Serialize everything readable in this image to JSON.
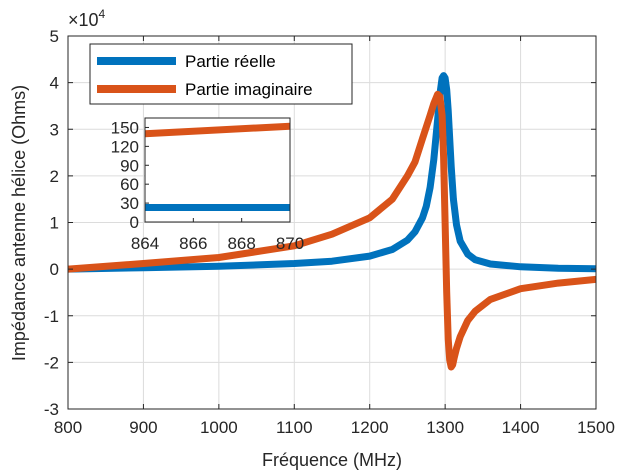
{
  "chart_data": [
    {
      "type": "line",
      "xlabel": "Fréquence (MHz)",
      "ylabel": "Impédance antenne hélice (Ohms)",
      "y_exponent_label": "×10",
      "y_exponent_power": "4",
      "xlim": [
        800,
        1500
      ],
      "ylim": [
        -3,
        5
      ],
      "y_scale_factor": 10000,
      "xticks": [
        800,
        900,
        1000,
        1100,
        1200,
        1300,
        1400,
        1500
      ],
      "yticks": [
        -3,
        -2,
        -1,
        0,
        1,
        2,
        3,
        4,
        5
      ],
      "grid": true,
      "legend_position": "top-left",
      "series": [
        {
          "name": "Partie réelle",
          "color": "#0072BD",
          "x": [
            800,
            900,
            1000,
            1100,
            1150,
            1200,
            1230,
            1250,
            1260,
            1270,
            1275,
            1280,
            1285,
            1290,
            1293,
            1296,
            1298,
            1300,
            1302,
            1304,
            1306,
            1308,
            1311,
            1315,
            1320,
            1330,
            1340,
            1360,
            1400,
            1450,
            1500
          ],
          "values": [
            0.0,
            0.03,
            0.06,
            0.12,
            0.17,
            0.28,
            0.42,
            0.62,
            0.8,
            1.1,
            1.35,
            1.75,
            2.35,
            3.2,
            3.75,
            4.1,
            4.15,
            4.1,
            3.85,
            3.4,
            2.8,
            2.2,
            1.5,
            0.95,
            0.6,
            0.32,
            0.2,
            0.11,
            0.05,
            0.02,
            0.01
          ]
        },
        {
          "name": "Partie imaginaire",
          "color": "#D95319",
          "x": [
            800,
            900,
            1000,
            1100,
            1150,
            1200,
            1230,
            1250,
            1260,
            1270,
            1280,
            1285,
            1290,
            1293,
            1296,
            1298,
            1300,
            1302,
            1304,
            1306,
            1308,
            1310,
            1312,
            1315,
            1320,
            1330,
            1340,
            1360,
            1400,
            1450,
            1500
          ],
          "values": [
            0.0,
            0.12,
            0.25,
            0.5,
            0.75,
            1.1,
            1.5,
            2.0,
            2.3,
            2.8,
            3.3,
            3.55,
            3.75,
            3.7,
            3.3,
            2.4,
            1.0,
            -0.5,
            -1.5,
            -1.95,
            -2.1,
            -2.05,
            -1.9,
            -1.7,
            -1.45,
            -1.1,
            -0.9,
            -0.65,
            -0.42,
            -0.3,
            -0.22
          ]
        }
      ]
    },
    {
      "type": "line",
      "xlim": [
        864,
        870
      ],
      "ylim": [
        0,
        165
      ],
      "xticks": [
        864,
        866,
        868,
        870
      ],
      "yticks": [
        0,
        30,
        60,
        90,
        120,
        150
      ],
      "grid": false,
      "series": [
        {
          "name": "Partie réelle",
          "color": "#0072BD",
          "x": [
            864,
            870
          ],
          "values": [
            23,
            23
          ]
        },
        {
          "name": "Partie imaginaire",
          "color": "#D95319",
          "x": [
            864,
            870
          ],
          "values": [
            140,
            152
          ]
        }
      ]
    }
  ]
}
